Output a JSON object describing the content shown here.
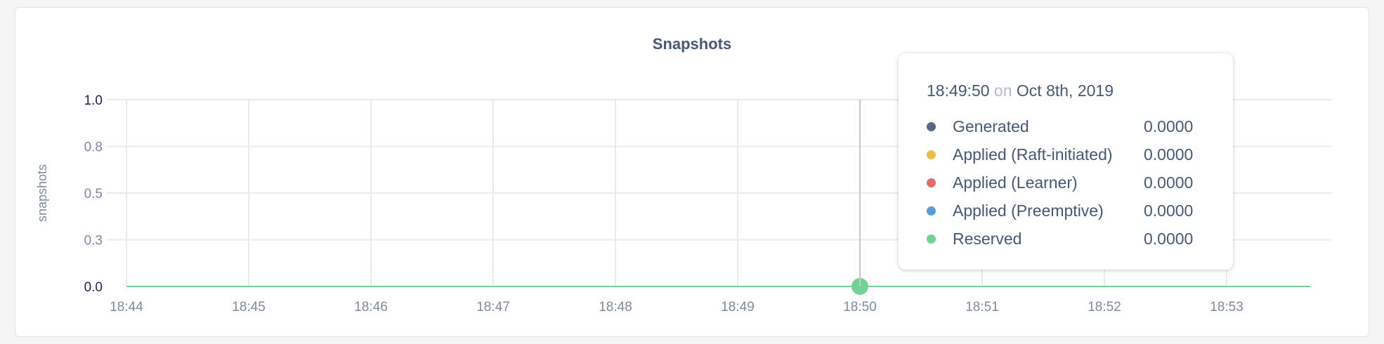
{
  "chart_data": {
    "type": "line",
    "title": "Snapshots",
    "ylabel": "snapshots",
    "xlabel": "",
    "ylim": [
      0,
      1
    ],
    "yticks": [
      0,
      0.25,
      0.5,
      0.75,
      1.0
    ],
    "ytick_labels": [
      "0.0",
      "0.3",
      "0.5",
      "0.8",
      "1.0"
    ],
    "xlim": [
      "18:44",
      "18:53:41"
    ],
    "xtick_labels": [
      "18:44",
      "18:45",
      "18:46",
      "18:47",
      "18:48",
      "18:49",
      "18:50",
      "18:51",
      "18:52",
      "18:53"
    ],
    "grid": true,
    "series": [
      {
        "name": "Generated",
        "color": "#5c6883",
        "x": [
          "18:44",
          "18:53:41"
        ],
        "values": [
          0,
          0
        ]
      },
      {
        "name": "Applied (Raft-initiated)",
        "color": "#e9bd4c",
        "x": [
          "18:44",
          "18:53:41"
        ],
        "values": [
          0,
          0
        ]
      },
      {
        "name": "Applied (Learner)",
        "color": "#e06c69",
        "x": [
          "18:44",
          "18:53:41"
        ],
        "values": [
          0,
          0
        ]
      },
      {
        "name": "Applied (Preemptive)",
        "color": "#5a9bd5",
        "x": [
          "18:44",
          "18:53:41"
        ],
        "values": [
          0,
          0
        ]
      },
      {
        "name": "Reserved",
        "color": "#73d195",
        "x": [
          "18:44",
          "18:53:41"
        ],
        "values": [
          0,
          0
        ]
      }
    ],
    "hover": {
      "x": "18:50",
      "value": 0
    }
  },
  "tooltip": {
    "time": "18:49:50",
    "on": "on",
    "date": "Oct 8th, 2019",
    "rows": [
      {
        "label": "Generated",
        "value": "0.0000",
        "color": "#5c6883"
      },
      {
        "label": "Applied (Raft-initiated)",
        "value": "0.0000",
        "color": "#e9bd4c"
      },
      {
        "label": "Applied (Learner)",
        "value": "0.0000",
        "color": "#e06c69"
      },
      {
        "label": "Applied (Preemptive)",
        "value": "0.0000",
        "color": "#5a9bd5"
      },
      {
        "label": "Reserved",
        "value": "0.0000",
        "color": "#73d195"
      }
    ]
  }
}
